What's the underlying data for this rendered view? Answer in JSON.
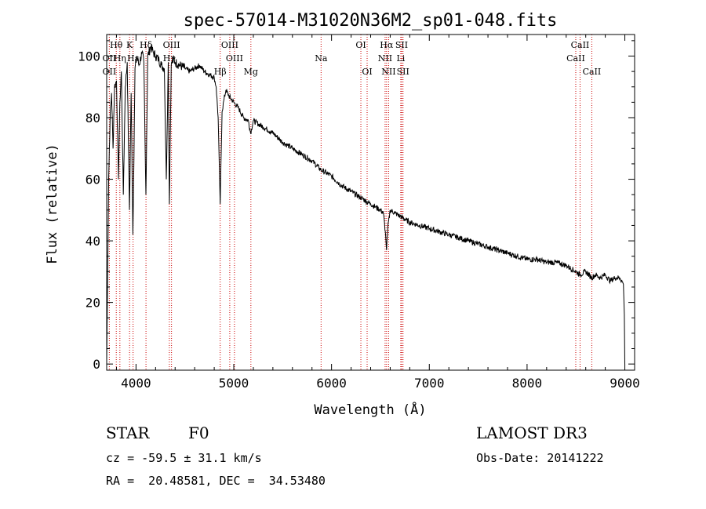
{
  "chart_data": {
    "type": "line",
    "title": "spec-57014-M31020N36M2_sp01-048.fits",
    "xlabel": "Wavelength (Å)",
    "ylabel": "Flux (relative)",
    "xlim": [
      3700,
      9100
    ],
    "ylim": [
      -2,
      107
    ],
    "xticks": [
      4000,
      5000,
      6000,
      7000,
      8000,
      9000
    ],
    "yticks": [
      0,
      20,
      40,
      60,
      80,
      100
    ],
    "series": [
      {
        "name": "spectrum",
        "x": [
          3700,
          3720,
          3735,
          3750,
          3765,
          3780,
          3800,
          3820,
          3835,
          3850,
          3870,
          3890,
          3910,
          3933,
          3950,
          3968,
          3990,
          4010,
          4030,
          4060,
          4080,
          4101,
          4120,
          4150,
          4180,
          4200,
          4230,
          4260,
          4290,
          4310,
          4330,
          4341,
          4360,
          4380,
          4400,
          4450,
          4500,
          4550,
          4600,
          4650,
          4700,
          4750,
          4800,
          4820,
          4840,
          4861,
          4880,
          4900,
          4920,
          4950,
          5000,
          5050,
          5100,
          5150,
          5172,
          5200,
          5250,
          5300,
          5400,
          5500,
          5600,
          5700,
          5800,
          5893,
          5950,
          6000,
          6100,
          6200,
          6300,
          6400,
          6450,
          6500,
          6530,
          6550,
          6563,
          6575,
          6600,
          6650,
          6700,
          6800,
          6900,
          7000,
          7100,
          7200,
          7300,
          7400,
          7500,
          7600,
          7700,
          7800,
          7900,
          8000,
          8100,
          8200,
          8300,
          8400,
          8500,
          8542,
          8600,
          8662,
          8700,
          8750,
          8800,
          8850,
          8900,
          8950,
          8985,
          8995,
          9000
        ],
        "y": [
          0,
          60,
          80,
          88,
          70,
          90,
          92,
          60,
          85,
          95,
          55,
          90,
          98,
          50,
          88,
          42,
          96,
          100,
          97,
          101,
          98,
          55,
          100,
          103,
          101,
          100,
          99,
          97,
          96,
          60,
          98,
          52,
          97,
          99,
          98,
          97,
          96,
          95,
          96,
          97,
          95,
          94,
          93,
          90,
          80,
          52,
          82,
          86,
          89,
          87,
          85,
          83,
          80,
          79,
          75,
          79,
          78,
          77,
          75,
          72,
          70,
          68,
          66,
          63,
          62,
          61,
          58,
          56,
          54,
          52,
          51,
          50,
          49,
          43,
          37,
          44,
          50,
          49,
          48,
          46,
          45,
          44,
          43,
          42,
          41,
          40,
          39,
          38,
          37,
          36,
          35,
          34,
          34,
          33,
          33,
          32,
          30,
          29,
          30,
          28,
          29,
          28,
          29,
          27,
          28,
          28,
          26,
          16,
          0
        ]
      }
    ],
    "spectral_lines": [
      {
        "label": "Hθ",
        "x": 3798,
        "row": 1
      },
      {
        "label": "OII",
        "x": 3727,
        "row": 2
      },
      {
        "label": "OII",
        "x": 3727,
        "row": 3
      },
      {
        "label": "Hη",
        "x": 3835,
        "row": 2
      },
      {
        "label": "K",
        "x": 3934,
        "row": 1
      },
      {
        "label": "Hε",
        "x": 3970,
        "row": 2
      },
      {
        "label": "Hδ",
        "x": 4102,
        "row": 1
      },
      {
        "label": "Hγ",
        "x": 4341,
        "row": 2
      },
      {
        "label": "OIII",
        "x": 4363,
        "row": 1
      },
      {
        "label": "Hβ",
        "x": 4861,
        "row": 3
      },
      {
        "label": "OIII",
        "x": 4959,
        "row": 1
      },
      {
        "label": "OIII",
        "x": 5007,
        "row": 2
      },
      {
        "label": "Mg",
        "x": 5175,
        "row": 3
      },
      {
        "label": "Na",
        "x": 5893,
        "row": 2
      },
      {
        "label": "OI",
        "x": 6300,
        "row": 1
      },
      {
        "label": "OI",
        "x": 6364,
        "row": 3
      },
      {
        "label": "Hα",
        "x": 6563,
        "row": 1
      },
      {
        "label": "NII",
        "x": 6548,
        "row": 2
      },
      {
        "label": "NII",
        "x": 6584,
        "row": 3
      },
      {
        "label": "SII",
        "x": 6717,
        "row": 1
      },
      {
        "label": "Li",
        "x": 6708,
        "row": 2
      },
      {
        "label": "SII",
        "x": 6731,
        "row": 3
      },
      {
        "label": "CaII",
        "x": 8542,
        "row": 1
      },
      {
        "label": "CaII",
        "x": 8498,
        "row": 2
      },
      {
        "label": "CaII",
        "x": 8662,
        "row": 3
      }
    ]
  },
  "info": {
    "object_type": "STAR",
    "subclass": "F0",
    "survey": "LAMOST DR3",
    "cz": "cz = -59.5 ± 31.1 km/s",
    "obs_date": "Obs-Date: 20141222",
    "radec": "RA =  20.48581, DEC =  34.53480"
  },
  "colors": {
    "spectrum": "#000000",
    "line_markers": "#cc0000",
    "axes": "#000000"
  }
}
